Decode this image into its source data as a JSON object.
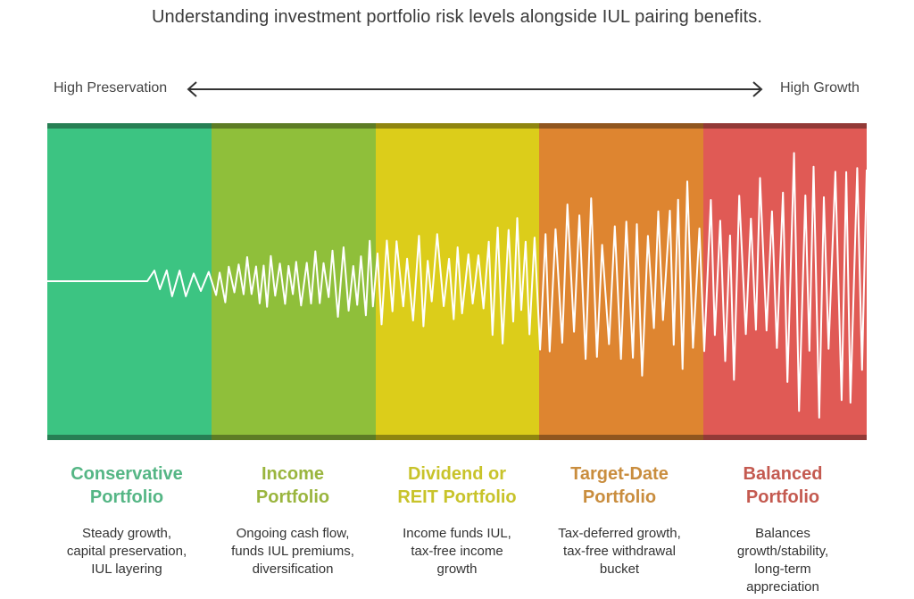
{
  "title": "Understanding investment portfolio risk levels alongside IUL pairing benefits.",
  "scale": {
    "left_label": "High Preservation",
    "right_label": "High Growth"
  },
  "colors": {
    "band1": "#3cc482",
    "band2": "#8fbf3a",
    "band3": "#dccd1a",
    "band4": "#de8530",
    "band5": "#e05a55",
    "title1": "#55b685",
    "title2": "#9ab53e",
    "title3": "#c8c32a",
    "title4": "#c98d3e",
    "title5": "#c45a50",
    "wave": "#ffffff"
  },
  "portfolios": [
    {
      "title_line1": "Conservative",
      "title_line2": "Portfolio",
      "desc_line1": "Steady growth,",
      "desc_line2": "capital preservation,",
      "desc_line3": "IUL layering",
      "desc_line4": ""
    },
    {
      "title_line1": "Income",
      "title_line2": "Portfolio",
      "desc_line1": "Ongoing cash flow,",
      "desc_line2": "funds IUL premiums,",
      "desc_line3": "diversification",
      "desc_line4": ""
    },
    {
      "title_line1": "Dividend or",
      "title_line2": "REIT Portfolio",
      "desc_line1": "Income funds IUL,",
      "desc_line2": "tax-free income",
      "desc_line3": "growth",
      "desc_line4": ""
    },
    {
      "title_line1": "Target-Date",
      "title_line2": "Portfolio",
      "desc_line1": "Tax-deferred growth,",
      "desc_line2": "tax-free withdrawal",
      "desc_line3": "bucket",
      "desc_line4": ""
    },
    {
      "title_line1": "Balanced",
      "title_line2": "Portfolio",
      "desc_line1": "Balances",
      "desc_line2": "growth/stability,",
      "desc_line3": "long-term",
      "desc_line4": "appreciation"
    }
  ]
}
